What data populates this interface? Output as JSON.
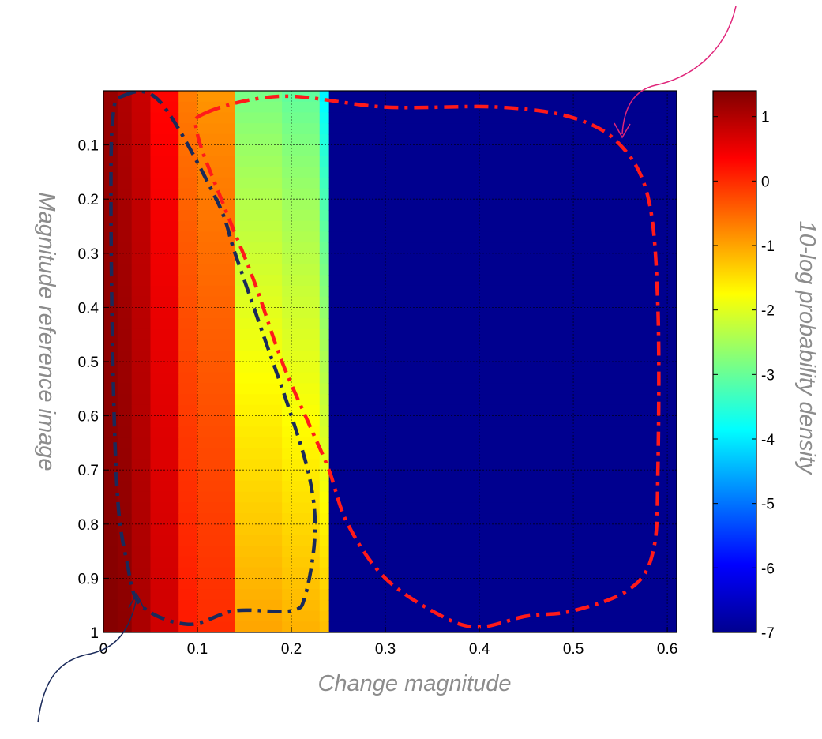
{
  "chart_data": {
    "type": "heatmap",
    "xlabel": "Change magnitude",
    "ylabel": "Magnitude reference image",
    "colorbar_label": "10-log probability density",
    "xlim": [
      0,
      0.61
    ],
    "ylim": [
      0,
      1
    ],
    "y_reversed": true,
    "grid": true,
    "x_ticks": [
      0,
      0.1,
      0.2,
      0.3,
      0.4,
      0.5,
      0.6
    ],
    "x_tick_labels": [
      "0",
      "0.1",
      "0.2",
      "0.3",
      "0.4",
      "0.5",
      "0.6"
    ],
    "y_ticks": [
      0.1,
      0.2,
      0.3,
      0.4,
      0.5,
      0.6,
      0.7,
      0.8,
      0.9,
      1
    ],
    "y_tick_labels": [
      "0.1",
      "0.2",
      "0.3",
      "0.4",
      "0.5",
      "0.6",
      "0.7",
      "0.8",
      "0.9",
      "1"
    ],
    "colorbar": {
      "min": -7,
      "max": 1.4,
      "ticks": [
        1,
        0,
        -1,
        -2,
        -3,
        -4,
        -5,
        -6,
        -7
      ],
      "tick_labels": [
        "1",
        "0",
        "-1",
        "-2",
        "-3",
        "-4",
        "-5",
        "-6",
        "-7"
      ],
      "colormap": "jet"
    },
    "columns": [
      {
        "x_start": 0,
        "x_end": 0.015,
        "value_top": 1.2,
        "value_bottom": 1.35
      },
      {
        "x_start": 0.015,
        "x_end": 0.03,
        "value_top": 1.0,
        "value_bottom": 1.3
      },
      {
        "x_start": 0.03,
        "x_end": 0.05,
        "value_top": 0.8,
        "value_bottom": 1.05
      },
      {
        "x_start": 0.05,
        "x_end": 0.08,
        "value_top": 0.3,
        "value_bottom": 0.75
      },
      {
        "x_start": 0.08,
        "x_end": 0.1,
        "value_top": -0.7,
        "value_bottom": 0.15
      },
      {
        "x_start": 0.1,
        "x_end": 0.14,
        "value_top": -0.9,
        "value_bottom": 0.0
      },
      {
        "x_start": 0.14,
        "x_end": 0.19,
        "value_top": -2.9,
        "value_bottom": -1.0
      },
      {
        "x_start": 0.19,
        "x_end": 0.23,
        "value_top": -3.1,
        "value_bottom": -1.1
      },
      {
        "x_start": 0.23,
        "x_end": 0.24,
        "value_top": -4.0,
        "value_bottom": -1.2
      },
      {
        "x_start": 0.24,
        "x_end": 0.61,
        "value_top": -7.0,
        "value_bottom": -7.0
      }
    ],
    "annotations": [
      {
        "name": "high-density-region",
        "style": "dash-dot",
        "color": "#1a2a5a",
        "outline": [
          [
            0.02,
            0.01
          ],
          [
            0.06,
            0.02
          ],
          [
            0.12,
            0.2
          ],
          [
            0.14,
            0.3
          ],
          [
            0.17,
            0.45
          ],
          [
            0.2,
            0.6
          ],
          [
            0.22,
            0.72
          ],
          [
            0.225,
            0.82
          ],
          [
            0.215,
            0.93
          ],
          [
            0.2,
            0.96
          ],
          [
            0.14,
            0.96
          ],
          [
            0.09,
            0.985
          ],
          [
            0.04,
            0.95
          ],
          [
            0.025,
            0.87
          ],
          [
            0.015,
            0.75
          ],
          [
            0.01,
            0.5
          ],
          [
            0.008,
            0.2
          ],
          [
            0.01,
            0.05
          ],
          [
            0.02,
            0.01
          ]
        ]
      },
      {
        "name": "low-density-region",
        "style": "dash-dot",
        "color": "#ff1a1a",
        "outline": [
          [
            0.11,
            0.04
          ],
          [
            0.19,
            0.01
          ],
          [
            0.3,
            0.03
          ],
          [
            0.42,
            0.03
          ],
          [
            0.5,
            0.05
          ],
          [
            0.55,
            0.1
          ],
          [
            0.58,
            0.2
          ],
          [
            0.59,
            0.4
          ],
          [
            0.59,
            0.7
          ],
          [
            0.585,
            0.85
          ],
          [
            0.56,
            0.92
          ],
          [
            0.5,
            0.96
          ],
          [
            0.45,
            0.97
          ],
          [
            0.4,
            0.99
          ],
          [
            0.36,
            0.97
          ],
          [
            0.3,
            0.9
          ],
          [
            0.26,
            0.8
          ],
          [
            0.24,
            0.7
          ],
          [
            0.22,
            0.62
          ],
          [
            0.19,
            0.5
          ],
          [
            0.16,
            0.35
          ],
          [
            0.13,
            0.22
          ],
          [
            0.1,
            0.08
          ],
          [
            0.11,
            0.04
          ]
        ]
      }
    ],
    "arrows": [
      {
        "name": "arrow-to-high-density",
        "color": "#1a2a5a"
      },
      {
        "name": "arrow-to-low-density",
        "color": "#e0257a"
      }
    ]
  }
}
